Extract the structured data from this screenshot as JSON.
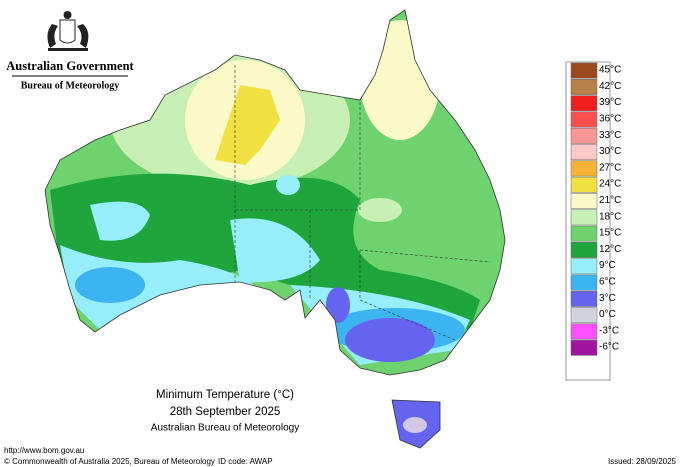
{
  "header": {
    "government": "Australian Government",
    "bureau": "Bureau of Meteorology"
  },
  "title": {
    "heading": "Minimum Temperature (°C)",
    "date": "28th September 2025",
    "source": "Australian Bureau of Meteorology"
  },
  "legend": {
    "items": [
      {
        "label": "45°C",
        "color": "#9a4a1e"
      },
      {
        "label": "42°C",
        "color": "#b5804a"
      },
      {
        "label": "39°C",
        "color": "#f01e1e"
      },
      {
        "label": "36°C",
        "color": "#ff5050"
      },
      {
        "label": "33°C",
        "color": "#ff9696"
      },
      {
        "label": "30°C",
        "color": "#ffc8c8"
      },
      {
        "label": "27°C",
        "color": "#f5b437"
      },
      {
        "label": "24°C",
        "color": "#f0e040"
      },
      {
        "label": "21°C",
        "color": "#fafac8"
      },
      {
        "label": "18°C",
        "color": "#c8f0b4"
      },
      {
        "label": "15°C",
        "color": "#6ed26e"
      },
      {
        "label": "12°C",
        "color": "#1ea53c"
      },
      {
        "label": "9°C",
        "color": "#96eefa"
      },
      {
        "label": "6°C",
        "color": "#3cb4f0"
      },
      {
        "label": "3°C",
        "color": "#6464f0"
      },
      {
        "label": "0°C",
        "color": "#d2d2dc"
      },
      {
        "label": "-3°C",
        "color": "#ff50ff"
      },
      {
        "label": "-6°C",
        "color": "#a014a0"
      }
    ]
  },
  "footer": {
    "url": "http://www.bom.gov.au",
    "copyright": "© Commonwealth of Australia 2025, Bureau of Meteorology",
    "id_code": "ID code: AWAP",
    "issued": "Issued: 28/09/2025"
  }
}
